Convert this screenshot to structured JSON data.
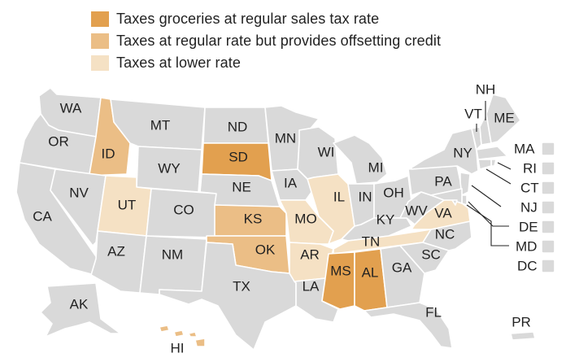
{
  "colors": {
    "full_rate": "#E2A04F",
    "offset_credit": "#EBBE86",
    "lower_rate": "#F5E1C4",
    "other": "#D9D9D9",
    "border": "#FFFFFF",
    "text": "#222222"
  },
  "legend": [
    {
      "label": "Taxes groceries at regular sales tax rate",
      "category": "full_rate"
    },
    {
      "label": "Taxes at regular rate but provides offsetting credit",
      "category": "offset_credit"
    },
    {
      "label": "Taxes at lower rate",
      "category": "lower_rate"
    }
  ],
  "states": {
    "WA": {
      "label": "WA",
      "category": "other"
    },
    "OR": {
      "label": "OR",
      "category": "other"
    },
    "CA": {
      "label": "CA",
      "category": "other"
    },
    "ID": {
      "label": "ID",
      "category": "offset_credit"
    },
    "NV": {
      "label": "NV",
      "category": "other"
    },
    "MT": {
      "label": "MT",
      "category": "other"
    },
    "WY": {
      "label": "WY",
      "category": "other"
    },
    "UT": {
      "label": "UT",
      "category": "lower_rate"
    },
    "AZ": {
      "label": "AZ",
      "category": "other"
    },
    "CO": {
      "label": "CO",
      "category": "other"
    },
    "NM": {
      "label": "NM",
      "category": "other"
    },
    "ND": {
      "label": "ND",
      "category": "other"
    },
    "SD": {
      "label": "SD",
      "category": "full_rate"
    },
    "NE": {
      "label": "NE",
      "category": "other"
    },
    "KS": {
      "label": "KS",
      "category": "offset_credit"
    },
    "OK": {
      "label": "OK",
      "category": "offset_credit"
    },
    "TX": {
      "label": "TX",
      "category": "other"
    },
    "MN": {
      "label": "MN",
      "category": "other"
    },
    "IA": {
      "label": "IA",
      "category": "other"
    },
    "MO": {
      "label": "MO",
      "category": "lower_rate"
    },
    "AR": {
      "label": "AR",
      "category": "lower_rate"
    },
    "LA": {
      "label": "LA",
      "category": "other"
    },
    "WI": {
      "label": "WI",
      "category": "other"
    },
    "IL": {
      "label": "IL",
      "category": "lower_rate"
    },
    "MI": {
      "label": "MI",
      "category": "other"
    },
    "IN": {
      "label": "IN",
      "category": "other"
    },
    "OH": {
      "label": "OH",
      "category": "other"
    },
    "KY": {
      "label": "KY",
      "category": "other"
    },
    "TN": {
      "label": "TN",
      "category": "lower_rate"
    },
    "MS": {
      "label": "MS",
      "category": "full_rate"
    },
    "AL": {
      "label": "AL",
      "category": "full_rate"
    },
    "GA": {
      "label": "GA",
      "category": "other"
    },
    "FL": {
      "label": "FL",
      "category": "other"
    },
    "SC": {
      "label": "SC",
      "category": "other"
    },
    "NC": {
      "label": "NC",
      "category": "other"
    },
    "VA": {
      "label": "VA",
      "category": "lower_rate"
    },
    "WV": {
      "label": "WV",
      "category": "other"
    },
    "PA": {
      "label": "PA",
      "category": "other"
    },
    "NY": {
      "label": "NY",
      "category": "other"
    },
    "VT": {
      "label": "VT",
      "category": "other"
    },
    "NH": {
      "label": "NH",
      "category": "other"
    },
    "ME": {
      "label": "ME",
      "category": "other"
    },
    "MA": {
      "label": "MA",
      "category": "other"
    },
    "RI": {
      "label": "RI",
      "category": "other"
    },
    "CT": {
      "label": "CT",
      "category": "other"
    },
    "NJ": {
      "label": "NJ",
      "category": "other"
    },
    "DE": {
      "label": "DE",
      "category": "other"
    },
    "MD": {
      "label": "MD",
      "category": "other"
    },
    "DC": {
      "label": "DC",
      "category": "other"
    },
    "AK": {
      "label": "AK",
      "category": "other"
    },
    "HI": {
      "label": "HI",
      "category": "offset_credit"
    },
    "PR": {
      "label": "PR",
      "category": "other"
    }
  }
}
